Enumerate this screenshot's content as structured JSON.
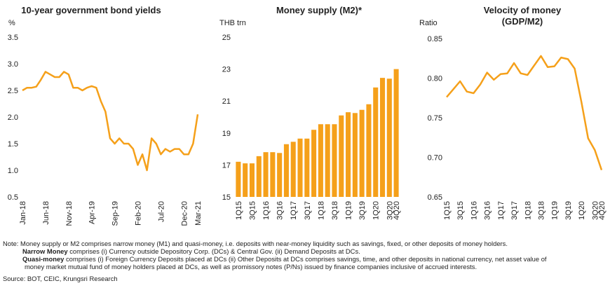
{
  "chart_data": [
    {
      "type": "line",
      "title": "10-year government bond yields",
      "ylabel": "%",
      "color": "#f5a01a",
      "categories": [
        "Jan-18",
        null,
        null,
        null,
        null,
        "Jun-18",
        null,
        null,
        null,
        null,
        "Nov-18",
        null,
        null,
        null,
        null,
        "Apr-19",
        null,
        null,
        null,
        null,
        "Sep-19",
        null,
        null,
        null,
        null,
        "Feb-20",
        null,
        null,
        null,
        null,
        "Jul-20",
        null,
        null,
        null,
        null,
        "Dec-20",
        null,
        null,
        "Mar-21"
      ],
      "values": [
        2.5,
        2.55,
        2.55,
        2.57,
        2.7,
        2.85,
        2.8,
        2.75,
        2.75,
        2.85,
        2.8,
        2.55,
        2.55,
        2.5,
        2.55,
        2.58,
        2.55,
        2.3,
        2.1,
        1.6,
        1.5,
        1.6,
        1.5,
        1.5,
        1.4,
        1.1,
        1.3,
        1.0,
        1.6,
        1.5,
        1.3,
        1.4,
        1.35,
        1.4,
        1.4,
        1.3,
        1.3,
        1.5,
        2.05
      ],
      "ylim": [
        0.5,
        3.5
      ],
      "yticks": [
        0.5,
        {
          "value": 1,
          "label": "1.0"
        },
        1.5,
        {
          "value": 2,
          "label": "2.0"
        },
        2.5,
        {
          "value": 3,
          "label": "3.0"
        },
        3.5
      ]
    },
    {
      "type": "bar",
      "title": "Money supply (M2)*",
      "ylabel": "THB trn",
      "color": "#f5a01a",
      "categories": [
        "1Q15",
        null,
        "3Q15",
        null,
        "1Q16",
        null,
        "3Q16",
        null,
        "1Q17",
        null,
        "3Q17",
        null,
        "1Q18",
        null,
        "3Q18",
        null,
        "1Q19",
        null,
        "3Q19",
        null,
        "1Q20",
        null,
        "3Q20",
        "4Q20"
      ],
      "values": [
        17.2,
        17.1,
        17.1,
        17.55,
        17.8,
        17.8,
        17.75,
        18.3,
        18.45,
        18.65,
        18.65,
        19.2,
        19.55,
        19.55,
        19.55,
        20.1,
        20.3,
        20.25,
        20.45,
        20.8,
        21.85,
        22.45,
        22.4,
        23.0
      ],
      "ylim": [
        15,
        25
      ],
      "yticks": [
        15,
        17,
        19,
        21,
        23,
        25
      ]
    },
    {
      "type": "line",
      "title": [
        "Velocity of money",
        "(GDP/M2)"
      ],
      "ylabel": "Ratio",
      "color": "#f5a01a",
      "categories": [
        "1Q15",
        null,
        "3Q15",
        null,
        "1Q16",
        null,
        "3Q16",
        null,
        "1Q17",
        null,
        "3Q17",
        null,
        "1Q18",
        null,
        "3Q18",
        null,
        "1Q19",
        null,
        "3Q19",
        null,
        "1Q20",
        null,
        "3Q20",
        "4Q20"
      ],
      "values": [
        0.776,
        0.786,
        0.796,
        0.783,
        0.781,
        0.792,
        0.807,
        0.798,
        0.805,
        0.806,
        0.819,
        0.806,
        0.804,
        0.816,
        0.828,
        0.814,
        0.815,
        0.826,
        0.824,
        0.812,
        0.77,
        0.724,
        0.709,
        0.684
      ],
      "ylim": [
        0.65,
        0.85
      ],
      "yticks": [
        0.65,
        {
          "value": 0.7,
          "label": "0.70"
        },
        0.75,
        {
          "value": 0.8,
          "label": "0.80"
        },
        0.85
      ]
    }
  ],
  "notes": {
    "line1": "Note: Money supply or M2 comprises narrow money (M1) and quasi-money, i.e. deposits with near-money liquidity such as savings, fixed, or other deposits of money holders.",
    "narrow_term": "Narrow Money",
    "narrow_text": " comprises (i) Currency outside Depository Corp. (DCs) & Central Gov. (ii) Demand Deposits at DCs.",
    "quasi_term": "Quasi-money",
    "quasi_text": " comprises (i) Foreign Currency Deposits placed at DCs (ii) Other Deposits at DCs comprises savings, time, and other deposits in national currency, net asset value of",
    "quasi_cont": "money market mutual fund of money holders placed at DCs, as well as promissory notes (P/Ns) issued by finance companies inclusive of accrued interests.",
    "source": "Source: BOT, CEIC, Krungsri Research"
  }
}
